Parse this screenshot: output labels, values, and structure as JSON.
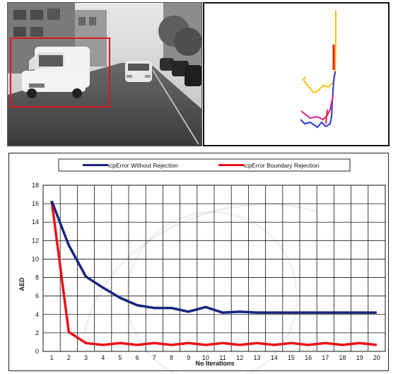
{
  "figure": {
    "photo_alt": "grayscale street scene with detected vehicle",
    "contour_colors": {
      "yellow": "#f5c20a",
      "red": "#e8202a",
      "blue": "#2a3acc",
      "magenta": "#e0208a"
    }
  },
  "chart_data": {
    "type": "line",
    "title": "",
    "xlabel": "No Iterations",
    "ylabel": "AED",
    "x": [
      1,
      2,
      3,
      4,
      5,
      6,
      7,
      8,
      9,
      10,
      11,
      12,
      13,
      14,
      15,
      16,
      17,
      18,
      19,
      20
    ],
    "ylim": [
      0,
      18
    ],
    "yticks": [
      0,
      2,
      4,
      6,
      8,
      10,
      12,
      14,
      16,
      18
    ],
    "grid": true,
    "legend_position": "top",
    "series": [
      {
        "name": "icpError Without Rejection",
        "color": "#1a237e",
        "values": [
          16.3,
          11.5,
          8.1,
          6.9,
          5.8,
          5.0,
          4.7,
          4.7,
          4.3,
          4.8,
          4.2,
          4.3,
          4.2,
          4.2,
          4.2,
          4.2,
          4.2,
          4.2,
          4.2,
          4.2
        ]
      },
      {
        "name": "icpError Boundary Rejection",
        "color": "#e8101a",
        "values": [
          16.3,
          2.1,
          0.9,
          0.7,
          0.9,
          0.7,
          0.9,
          0.7,
          0.9,
          0.7,
          0.9,
          0.7,
          0.9,
          0.7,
          0.9,
          0.7,
          0.9,
          0.7,
          0.9,
          0.7
        ]
      }
    ]
  }
}
